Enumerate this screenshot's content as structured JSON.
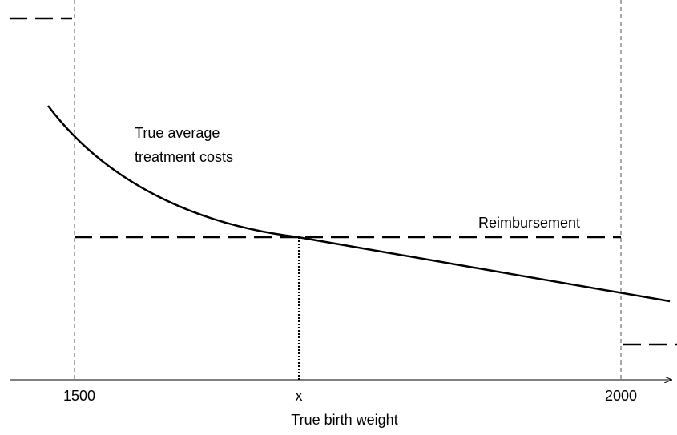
{
  "x_axis": {
    "ticks": [
      "1500",
      "x",
      "2000"
    ],
    "label": "True birth weight"
  },
  "curve_label": [
    "True average",
    "treatment costs"
  ],
  "reimbursement_label": "Reimbursement"
}
